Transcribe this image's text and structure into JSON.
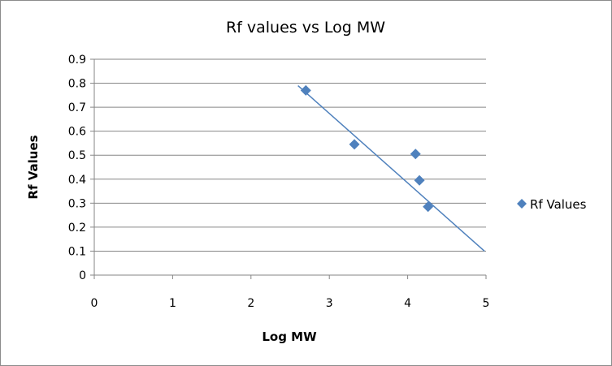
{
  "chart_data": {
    "type": "scatter",
    "title": "Rf values vs Log MW",
    "xlabel": "Log MW",
    "ylabel": "Rf Values",
    "xlim": [
      0,
      5
    ],
    "ylim": [
      0,
      0.9
    ],
    "x_ticks": [
      "0",
      "1",
      "2",
      "3",
      "4",
      "5"
    ],
    "y_ticks": [
      "0",
      "0.1",
      "0.2",
      "0.3",
      "0.4",
      "0.5",
      "0.6",
      "0.7",
      "0.8",
      "0.9"
    ],
    "grid": "horizontal",
    "legend_position": "right",
    "series": [
      {
        "name": "Rf Values",
        "color": "#4F81BD",
        "marker": "diamond",
        "points": [
          {
            "x": 2.7,
            "y": 0.77
          },
          {
            "x": 3.32,
            "y": 0.545
          },
          {
            "x": 4.1,
            "y": 0.505
          },
          {
            "x": 4.15,
            "y": 0.395
          },
          {
            "x": 4.26,
            "y": 0.285
          }
        ]
      }
    ],
    "trendline": {
      "type": "linear",
      "color": "#4F81BD",
      "from": {
        "x": 2.6,
        "y": 0.79
      },
      "to": {
        "x": 4.98,
        "y": 0.1
      }
    }
  }
}
